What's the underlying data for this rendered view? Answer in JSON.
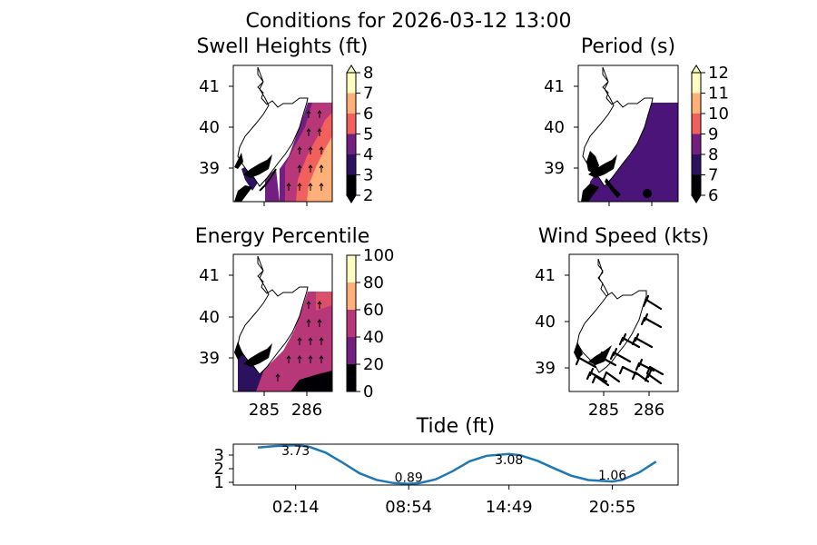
{
  "suptitle": "Conditions for 2026-03-12 13:00",
  "chart_data": [
    {
      "type": "heatmap",
      "title": "Swell Heights (ft)",
      "xticks": [
        285,
        286
      ],
      "yticks": [
        39,
        40,
        41
      ],
      "colorbar": {
        "ticks": [
          2,
          3,
          4,
          5,
          6,
          7,
          8
        ],
        "extend": "both"
      },
      "levels": [
        2,
        3,
        4,
        5,
        6,
        7,
        8
      ],
      "colors": [
        "#000004",
        "#2c115f",
        "#721f81",
        "#b73779",
        "#f1605d",
        "#feb078",
        "#fcfdbf"
      ],
      "bands": [
        {
          "level": 4,
          "x_offshore_from": 284.9
        },
        {
          "level": 5,
          "x_offshore_from": 285.3
        },
        {
          "level": 6,
          "x_offshore_from": 285.6
        },
        {
          "level": 7,
          "x_offshore_from": 285.95
        }
      ],
      "arrows": true
    },
    {
      "type": "heatmap",
      "title": "Period (s)",
      "xticks": [
        285,
        286
      ],
      "yticks": [
        39,
        40,
        41
      ],
      "colorbar": {
        "ticks": [
          6,
          7,
          8,
          9,
          10,
          11,
          12
        ],
        "extend": "both"
      },
      "levels": [
        6,
        7,
        8,
        9,
        10,
        11,
        12
      ],
      "dominant_level": 8,
      "arrows": false
    },
    {
      "type": "heatmap",
      "title": "Energy Percentile",
      "xticks": [
        285,
        286
      ],
      "yticks": [
        39,
        40,
        41
      ],
      "colorbar": {
        "ticks": [
          0,
          20,
          40,
          60,
          80,
          100
        ],
        "extend": "neither"
      },
      "levels": [
        0,
        20,
        40,
        60,
        80,
        100
      ],
      "dominant_level": 60,
      "arrows": true
    },
    {
      "type": "scatter",
      "title": "Wind Speed (kts)",
      "xticks": [
        285,
        286
      ],
      "yticks": [
        39,
        40,
        41
      ],
      "glyph": "wind barbs"
    },
    {
      "type": "line",
      "title": "Tide (ft)",
      "xticklabels": [
        "02:14",
        "08:54",
        "14:49",
        "20:55"
      ],
      "yticks": [
        1,
        2,
        3
      ],
      "ylim": [
        0.8,
        3.8
      ],
      "x_hours": [
        0,
        1,
        2,
        2.23,
        3,
        4,
        5,
        6,
        7,
        8,
        8.9,
        9.5,
        10.5,
        11.5,
        12.5,
        13.5,
        14.82,
        15.5,
        16.5,
        17.5,
        18.5,
        19.5,
        20.92,
        21.5,
        22.5,
        23.5
      ],
      "values": [
        3.55,
        3.66,
        3.71,
        3.73,
        3.62,
        3.18,
        2.45,
        1.66,
        1.18,
        0.95,
        0.89,
        0.93,
        1.22,
        1.82,
        2.55,
        2.95,
        3.08,
        2.98,
        2.58,
        2.02,
        1.48,
        1.17,
        1.06,
        1.18,
        1.72,
        2.52
      ],
      "annotations": [
        {
          "time": 2.23,
          "text": "3.73"
        },
        {
          "time": 8.9,
          "text": "0.89"
        },
        {
          "time": 14.82,
          "text": "3.08"
        },
        {
          "time": 20.92,
          "text": "1.06"
        }
      ],
      "line_color": "#1f77b4"
    }
  ]
}
